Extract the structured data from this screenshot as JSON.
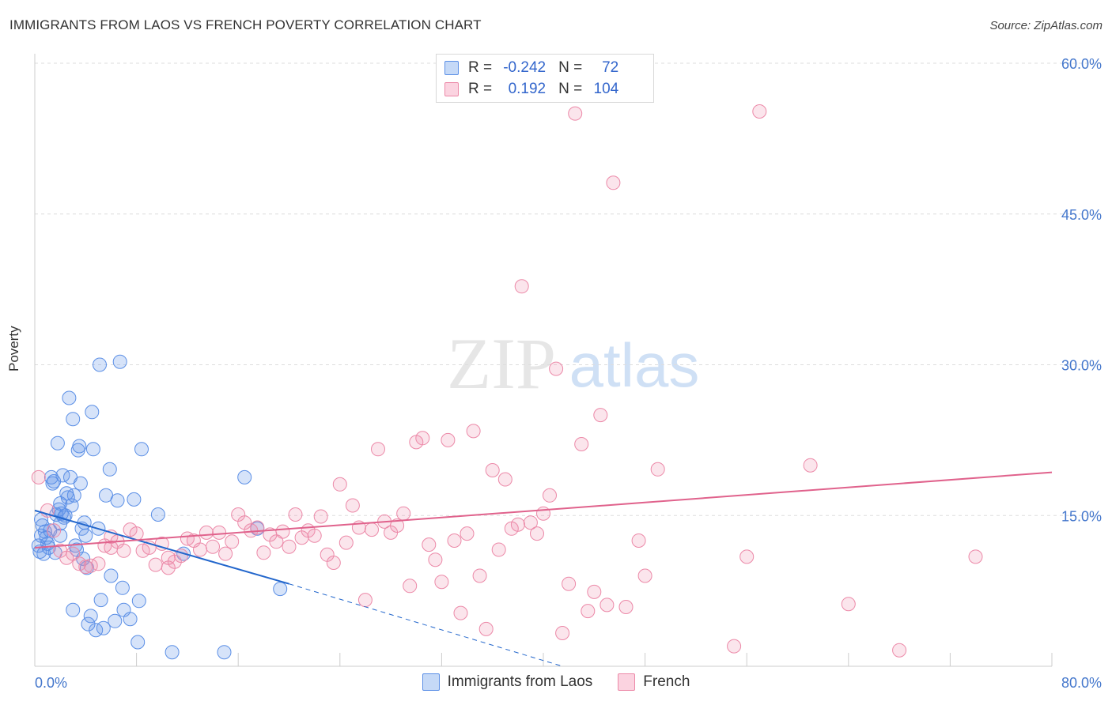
{
  "header": {
    "title": "IMMIGRANTS FROM LAOS VS FRENCH POVERTY CORRELATION CHART",
    "source": "Source: ZipAtlas.com"
  },
  "watermark": {
    "zip": "ZIP",
    "atlas": "atlas"
  },
  "stats": [
    {
      "r_label": "R =",
      "r_value": "-0.242",
      "n_label": "N =",
      "n_value": "72",
      "color": "#5b8fe6"
    },
    {
      "r_label": "R =",
      "r_value": "0.192",
      "n_label": "N =",
      "n_value": "104",
      "color": "#ec89a8"
    }
  ],
  "colors": {
    "laos": "#5b8fe6",
    "laos_line": "#2266cc",
    "french": "#ec89a8",
    "french_line": "#e0628c",
    "tick_label": "#4477cc"
  },
  "chart_data": {
    "type": "scatter",
    "xlabel": "",
    "ylabel": "Poverty",
    "xlim": [
      0,
      80
    ],
    "ylim": [
      0,
      60
    ],
    "x_tick_labels": [
      "0.0%",
      "80.0%"
    ],
    "y_ticks": [
      15,
      30,
      45,
      60
    ],
    "y_tick_labels": [
      "15.0%",
      "30.0%",
      "45.0%",
      "60.0%"
    ],
    "grid": true,
    "legend_position": "bottom",
    "series": [
      {
        "name": "Immigrants from Laos",
        "trend": {
          "x": [
            0,
            20
          ],
          "y": [
            15.5,
            8.2
          ]
        },
        "trend_extension": {
          "x": [
            20,
            41.5
          ],
          "y": [
            8.2,
            0
          ]
        },
        "points": [
          [
            0.3,
            12
          ],
          [
            0.4,
            11.4
          ],
          [
            0.5,
            13
          ],
          [
            0.6,
            14
          ],
          [
            0.8,
            13.4
          ],
          [
            0.9,
            12.8
          ],
          [
            1.0,
            12.2
          ],
          [
            1.1,
            11.8
          ],
          [
            0.5,
            14.6
          ],
          [
            0.7,
            11.2
          ],
          [
            1.2,
            13.5
          ],
          [
            1.3,
            18.8
          ],
          [
            1.4,
            18.2
          ],
          [
            1.5,
            18.4
          ],
          [
            1.6,
            11.3
          ],
          [
            1.7,
            15.1
          ],
          [
            1.8,
            22.2
          ],
          [
            1.9,
            15.6
          ],
          [
            2.0,
            16.2
          ],
          [
            2.1,
            15.2
          ],
          [
            2.2,
            19.0
          ],
          [
            2.3,
            14.8
          ],
          [
            2.4,
            15.0
          ],
          [
            2.5,
            17.2
          ],
          [
            2.6,
            16.8
          ],
          [
            2.7,
            26.7
          ],
          [
            2.8,
            18.8
          ],
          [
            2.9,
            16.0
          ],
          [
            3.0,
            24.6
          ],
          [
            3.1,
            17.0
          ],
          [
            3.2,
            12.0
          ],
          [
            3.3,
            11.6
          ],
          [
            3.4,
            21.5
          ],
          [
            3.5,
            21.9
          ],
          [
            3.6,
            18.2
          ],
          [
            3.7,
            13.7
          ],
          [
            3.8,
            10.7
          ],
          [
            3.9,
            14.3
          ],
          [
            4.0,
            13.0
          ],
          [
            4.1,
            9.8
          ],
          [
            4.2,
            4.2
          ],
          [
            4.4,
            5.0
          ],
          [
            4.5,
            25.3
          ],
          [
            4.6,
            21.6
          ],
          [
            4.8,
            3.6
          ],
          [
            5.0,
            13.7
          ],
          [
            5.1,
            30.0
          ],
          [
            5.2,
            6.6
          ],
          [
            5.4,
            3.8
          ],
          [
            5.6,
            17.0
          ],
          [
            5.9,
            19.6
          ],
          [
            6.0,
            9.0
          ],
          [
            6.3,
            4.5
          ],
          [
            6.5,
            16.5
          ],
          [
            6.7,
            30.3
          ],
          [
            6.9,
            7.8
          ],
          [
            7.0,
            5.6
          ],
          [
            7.5,
            4.7
          ],
          [
            7.8,
            16.6
          ],
          [
            8.1,
            2.4
          ],
          [
            8.2,
            6.5
          ],
          [
            8.4,
            21.6
          ],
          [
            9.7,
            15.1
          ],
          [
            10.8,
            1.4
          ],
          [
            11.7,
            11.2
          ],
          [
            14.9,
            1.4
          ],
          [
            16.5,
            18.8
          ],
          [
            17.5,
            13.7
          ],
          [
            19.3,
            7.7
          ],
          [
            3.0,
            5.6
          ],
          [
            2.0,
            14.2
          ],
          [
            2.0,
            13.0
          ]
        ]
      },
      {
        "name": "French",
        "trend": {
          "x": [
            0,
            80
          ],
          "y": [
            11.8,
            19.3
          ]
        },
        "points": [
          [
            0.3,
            18.8
          ],
          [
            1.0,
            15.5
          ],
          [
            1.5,
            13.5
          ],
          [
            2.0,
            11.5
          ],
          [
            2.5,
            10.8
          ],
          [
            3.0,
            11.2
          ],
          [
            3.5,
            10.2
          ],
          [
            4.0,
            9.9
          ],
          [
            4.4,
            10.0
          ],
          [
            5.0,
            10.2
          ],
          [
            5.5,
            12.0
          ],
          [
            6.0,
            11.8
          ],
          [
            6.5,
            12.4
          ],
          [
            7.0,
            11.5
          ],
          [
            7.5,
            13.6
          ],
          [
            8.0,
            13.2
          ],
          [
            8.5,
            11.5
          ],
          [
            9.0,
            11.8
          ],
          [
            9.5,
            10.1
          ],
          [
            10.0,
            12.2
          ],
          [
            10.5,
            10.8
          ],
          [
            11.0,
            10.4
          ],
          [
            11.5,
            11.0
          ],
          [
            12.0,
            12.7
          ],
          [
            12.5,
            12.5
          ],
          [
            13.0,
            11.6
          ],
          [
            13.5,
            13.3
          ],
          [
            14.0,
            11.9
          ],
          [
            14.5,
            13.3
          ],
          [
            15.0,
            11.2
          ],
          [
            15.5,
            12.4
          ],
          [
            16.0,
            15.1
          ],
          [
            16.5,
            14.3
          ],
          [
            17.0,
            13.5
          ],
          [
            17.5,
            13.8
          ],
          [
            18.0,
            11.3
          ],
          [
            18.5,
            13.1
          ],
          [
            19.0,
            12.4
          ],
          [
            19.5,
            13.4
          ],
          [
            20.0,
            11.9
          ],
          [
            20.5,
            15.1
          ],
          [
            21.0,
            12.8
          ],
          [
            21.5,
            13.5
          ],
          [
            22.0,
            13.0
          ],
          [
            22.5,
            14.9
          ],
          [
            23.0,
            11.1
          ],
          [
            23.5,
            10.3
          ],
          [
            24.0,
            18.1
          ],
          [
            24.5,
            12.3
          ],
          [
            25.0,
            16.0
          ],
          [
            25.5,
            13.8
          ],
          [
            26.0,
            6.6
          ],
          [
            26.5,
            13.6
          ],
          [
            27.0,
            21.6
          ],
          [
            27.5,
            14.4
          ],
          [
            28.0,
            13.3
          ],
          [
            28.5,
            14.0
          ],
          [
            29.0,
            15.2
          ],
          [
            29.5,
            8.0
          ],
          [
            30.0,
            22.3
          ],
          [
            30.5,
            22.7
          ],
          [
            31.0,
            12.1
          ],
          [
            31.5,
            10.6
          ],
          [
            32.0,
            8.4
          ],
          [
            32.5,
            22.5
          ],
          [
            33.0,
            12.5
          ],
          [
            33.5,
            5.3
          ],
          [
            34.0,
            13.2
          ],
          [
            34.5,
            23.4
          ],
          [
            35.0,
            9.0
          ],
          [
            35.5,
            3.7
          ],
          [
            36.0,
            19.5
          ],
          [
            36.5,
            11.6
          ],
          [
            37.0,
            18.6
          ],
          [
            37.5,
            13.7
          ],
          [
            38.0,
            14.1
          ],
          [
            38.3,
            37.8
          ],
          [
            39.0,
            14.3
          ],
          [
            39.5,
            13.2
          ],
          [
            40.0,
            15.2
          ],
          [
            40.5,
            17.0
          ],
          [
            41.0,
            29.6
          ],
          [
            41.5,
            3.3
          ],
          [
            42.0,
            8.2
          ],
          [
            42.5,
            55.0
          ],
          [
            43.0,
            22.1
          ],
          [
            43.5,
            5.5
          ],
          [
            44.0,
            7.4
          ],
          [
            44.5,
            25.0
          ],
          [
            45.0,
            6.1
          ],
          [
            45.5,
            48.1
          ],
          [
            46.5,
            5.9
          ],
          [
            47.5,
            12.5
          ],
          [
            48.0,
            9.0
          ],
          [
            49.0,
            19.6
          ],
          [
            55.0,
            2.0
          ],
          [
            56.0,
            10.9
          ],
          [
            57.0,
            55.2
          ],
          [
            61.0,
            20.0
          ],
          [
            64.0,
            6.2
          ],
          [
            68.0,
            1.6
          ],
          [
            74.0,
            10.9
          ],
          [
            10.5,
            9.8
          ],
          [
            6.0,
            12.9
          ]
        ]
      }
    ]
  }
}
